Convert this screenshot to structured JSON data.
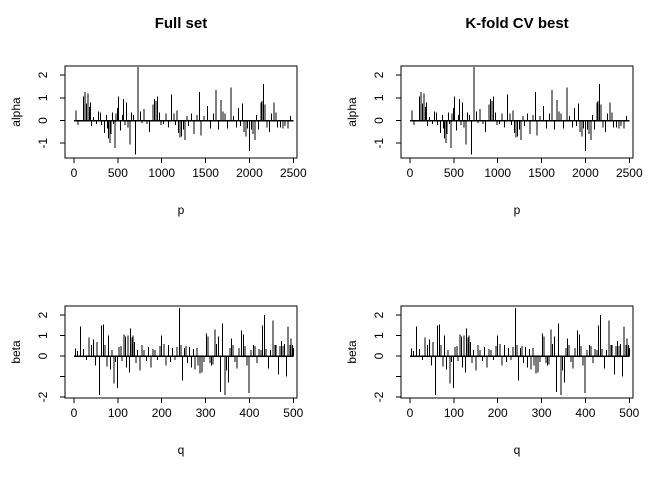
{
  "colors": {
    "foreground": "#000000",
    "background": "#ffffff"
  },
  "chart_data": {
    "type": "bar",
    "layout": "2x2-grid",
    "note": "R-style vertical needle plots; left and right columns show identical coefficient profiles",
    "panels": [
      {
        "title": "Full set",
        "xlabel": "p",
        "ylabel": "alpha",
        "series": "alpha",
        "xlim": [
          0,
          2500
        ],
        "xticks": [
          0,
          500,
          1000,
          1500,
          2000,
          2500
        ],
        "yticks": [
          -1,
          0,
          1,
          2
        ],
        "ytick_labels": [
          "-1",
          "0",
          "1",
          "2"
        ],
        "ylim": [
          -1.65,
          2.4
        ]
      },
      {
        "title": "K-fold CV best",
        "xlabel": "p",
        "ylabel": "alpha",
        "series": "alpha",
        "xlim": [
          0,
          2500
        ],
        "xticks": [
          0,
          500,
          1000,
          1500,
          2000,
          2500
        ],
        "yticks": [
          -1,
          0,
          1,
          2
        ],
        "ytick_labels": [
          "-1",
          "0",
          "1",
          "2"
        ],
        "ylim": [
          -1.65,
          2.4
        ]
      },
      {
        "title": "",
        "xlabel": "q",
        "ylabel": "beta",
        "series": "beta",
        "xlim": [
          0,
          500
        ],
        "xticks": [
          0,
          100,
          200,
          300,
          400,
          500
        ],
        "yticks": [
          -2,
          -1,
          0,
          1,
          2
        ],
        "ytick_labels": [
          "-2",
          "",
          "0",
          "1",
          "2"
        ],
        "ylim": [
          -2.05,
          2.45
        ]
      },
      {
        "title": "",
        "xlabel": "q",
        "ylabel": "beta",
        "series": "beta",
        "xlim": [
          0,
          500
        ],
        "xticks": [
          0,
          100,
          200,
          300,
          400,
          500
        ],
        "yticks": [
          -2,
          -1,
          0,
          1,
          2
        ],
        "ytick_labels": [
          "-2",
          "",
          "0",
          "1",
          "2"
        ],
        "ylim": [
          -2.05,
          2.45
        ]
      }
    ],
    "series": {
      "alpha": {
        "x": [
          20,
          45,
          110,
          125,
          140,
          160,
          175,
          188,
          200,
          225,
          255,
          280,
          300,
          312,
          350,
          368,
          384,
          396,
          410,
          424,
          438,
          452,
          468,
          480,
          494,
          510,
          530,
          552,
          566,
          580,
          600,
          615,
          640,
          655,
          678,
          700,
          730,
          758,
          775,
          800,
          830,
          860,
          900,
          920,
          935,
          950,
          972,
          990,
          1020,
          1050,
          1080,
          1110,
          1138,
          1158,
          1175,
          1192,
          1210,
          1228,
          1248,
          1268,
          1288,
          1308,
          1340,
          1368,
          1400,
          1428,
          1450,
          1480,
          1520,
          1558,
          1590,
          1620,
          1650,
          1678,
          1700,
          1722,
          1750,
          1790,
          1820,
          1850,
          1878,
          1900,
          1920,
          1940,
          1962,
          1980,
          2000,
          2022,
          2042,
          2062,
          2082,
          2102,
          2130,
          2146,
          2162,
          2178,
          2200,
          2230,
          2252,
          2280,
          2302,
          2322,
          2352,
          2382,
          2405,
          2440,
          2470
        ],
        "y": [
          0.45,
          -0.2,
          1.05,
          1.25,
          0.75,
          1.2,
          0.6,
          0.8,
          -0.25,
          0.15,
          -0.15,
          0.4,
          0.35,
          -0.2,
          -0.55,
          0.25,
          -0.35,
          -0.8,
          -1.0,
          -0.6,
          0.35,
          -0.15,
          -1.22,
          0.3,
          0.55,
          1.05,
          -0.45,
          0.25,
          0.95,
          -0.2,
          0.8,
          -0.3,
          -1.05,
          0.35,
          0.25,
          -1.5,
          2.35,
          0.4,
          -0.1,
          0.5,
          -0.15,
          -0.5,
          0.7,
          0.95,
          0.85,
          1.05,
          0.35,
          -0.2,
          -0.15,
          0.3,
          -0.3,
          1.15,
          0.3,
          -0.2,
          0.45,
          -0.55,
          -0.75,
          -0.7,
          -0.4,
          -0.85,
          0.2,
          -0.25,
          0.3,
          -0.6,
          0.25,
          1.25,
          -0.65,
          0.2,
          0.65,
          -0.35,
          0.3,
          1.35,
          -0.4,
          0.9,
          0.4,
          0.3,
          -0.35,
          1.45,
          0.2,
          -0.3,
          0.55,
          -0.25,
          0.75,
          -0.5,
          -0.7,
          -0.35,
          -1.35,
          -0.4,
          -0.6,
          -0.85,
          0.25,
          -0.4,
          0.8,
          0.85,
          1.6,
          0.7,
          -0.3,
          -0.5,
          0.3,
          0.8,
          0.35,
          -0.3,
          -0.3,
          -0.35,
          -0.25,
          -0.35,
          0.2
        ]
      },
      "beta": {
        "x": [
          3,
          8,
          15,
          22,
          28,
          34,
          40,
          45,
          49,
          53,
          58,
          63,
          67,
          71,
          75,
          79,
          83,
          87,
          91,
          95,
          99,
          103,
          107,
          110,
          114,
          117,
          120,
          123,
          126,
          129,
          132,
          135,
          138,
          141,
          145,
          150,
          155,
          160,
          165,
          170,
          175,
          180,
          185,
          190,
          196,
          200,
          205,
          210,
          215,
          220,
          225,
          230,
          235,
          240,
          244,
          247,
          252,
          255,
          259,
          263,
          268,
          272,
          276,
          280,
          283,
          287,
          292,
          296,
          302,
          306,
          310,
          314,
          317,
          321,
          325,
          330,
          334,
          339,
          344,
          348,
          352,
          356,
          359,
          363,
          367,
          372,
          376,
          382,
          386,
          390,
          395,
          399,
          404,
          409,
          413,
          417,
          422,
          426,
          430,
          434,
          438,
          444,
          448,
          454,
          458,
          461,
          466,
          470,
          473,
          477,
          480,
          484,
          488,
          492,
          495,
          498,
          500
        ],
        "y": [
          0.37,
          0.25,
          1.45,
          0.35,
          -0.2,
          0.9,
          0.55,
          0.8,
          -0.45,
          0.7,
          -1.9,
          1.5,
          1.55,
          0.55,
          -0.5,
          1.0,
          -0.65,
          0.3,
          -1.35,
          -0.3,
          -1.55,
          0.45,
          0.5,
          -0.25,
          1.05,
          0.95,
          -0.55,
          1.0,
          -0.8,
          1.35,
          0.9,
          1.0,
          0.7,
          -0.35,
          0.3,
          -0.7,
          0.55,
          0.3,
          -0.25,
          0.45,
          -0.55,
          0.35,
          0.3,
          -0.2,
          0.5,
          1.0,
          0.6,
          -0.45,
          0.55,
          -0.3,
          0.4,
          -0.2,
          0.45,
          2.35,
          0.55,
          -1.2,
          0.4,
          0.5,
          -0.35,
          0.45,
          -0.55,
          0.35,
          -0.65,
          0.4,
          -0.45,
          -0.85,
          -0.8,
          -0.3,
          1.1,
          0.95,
          -0.35,
          -0.45,
          -0.4,
          1.3,
          0.6,
          0.95,
          -1.75,
          1.6,
          -1.9,
          -0.7,
          -1.3,
          0.4,
          0.85,
          0.55,
          -0.3,
          -0.6,
          0.4,
          1.25,
          1.05,
          0.5,
          -0.45,
          -1.8,
          0.3,
          0.55,
          0.5,
          -0.35,
          0.35,
          0.3,
          1.5,
          2.0,
          0.35,
          -0.6,
          0.3,
          1.75,
          0.55,
          0.55,
          -0.9,
          0.5,
          0.75,
          0.5,
          0.6,
          -1.0,
          1.45,
          0.55,
          0.85,
          0.55,
          0.4
        ]
      }
    }
  }
}
